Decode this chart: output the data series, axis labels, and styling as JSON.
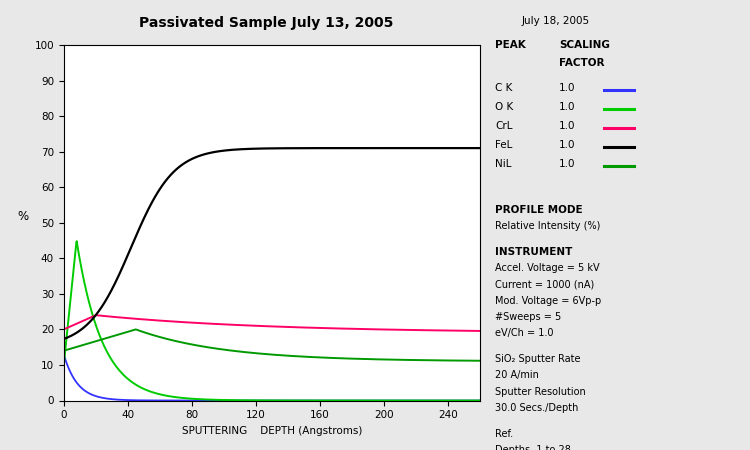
{
  "title": "Passivated Sample July 13, 2005",
  "date_label": "July 18, 2005",
  "xlabel": "SPUTTERING    DEPTH (Angstroms)",
  "ylabel": "%",
  "xlim": [
    0,
    260
  ],
  "ylim": [
    0,
    100
  ],
  "xticks": [
    0,
    40,
    80,
    120,
    160,
    200,
    240
  ],
  "yticks": [
    0,
    10,
    20,
    30,
    40,
    50,
    60,
    70,
    80,
    90,
    100
  ],
  "background_color": "#e8e8e8",
  "plot_bg": "#ffffff",
  "legend_entries": [
    {
      "label": "C K",
      "factor": "1.0",
      "color": "#3333ff"
    },
    {
      "label": "O K",
      "factor": "1.0",
      "color": "#00cc00"
    },
    {
      "label": "CrL",
      "factor": "1.0",
      "color": "#ff0066"
    },
    {
      "label": "FeL",
      "factor": "1.0",
      "color": "#000000"
    },
    {
      "label": "NiL",
      "factor": "1.0",
      "color": "#009900"
    }
  ],
  "ok_color": "#00cc00",
  "nil_color": "#009900"
}
